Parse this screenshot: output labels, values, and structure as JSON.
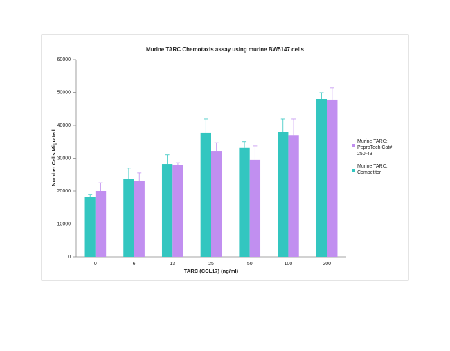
{
  "chart_data": {
    "type": "bar",
    "title": "Murine TARC Chemotaxis assay using murine BW5147 cells",
    "x_label": "TARC (CCL17) (ng/ml)",
    "y_label": "Number Cells Migrated",
    "categories": [
      "0",
      "6",
      "13",
      "25",
      "50",
      "100",
      "200"
    ],
    "series": [
      {
        "name": "Murine TARC; Competitor",
        "color": "#33c6c0",
        "values": [
          18300,
          23600,
          28200,
          37700,
          33100,
          38100,
          48000
        ],
        "errors": [
          700,
          3400,
          2800,
          4200,
          1900,
          3800,
          1900
        ]
      },
      {
        "name": "Murine TARC; PeproTech Cat# 250-43",
        "color": "#c18ff0",
        "values": [
          20000,
          23000,
          28000,
          32200,
          29500,
          37000,
          47800
        ],
        "errors": [
          2500,
          2500,
          600,
          2500,
          4200,
          4900,
          3600
        ]
      }
    ],
    "ylim": [
      0,
      60000
    ],
    "yticks": [
      0,
      10000,
      20000,
      30000,
      40000,
      50000,
      60000
    ],
    "grid": false,
    "legend": "right"
  }
}
